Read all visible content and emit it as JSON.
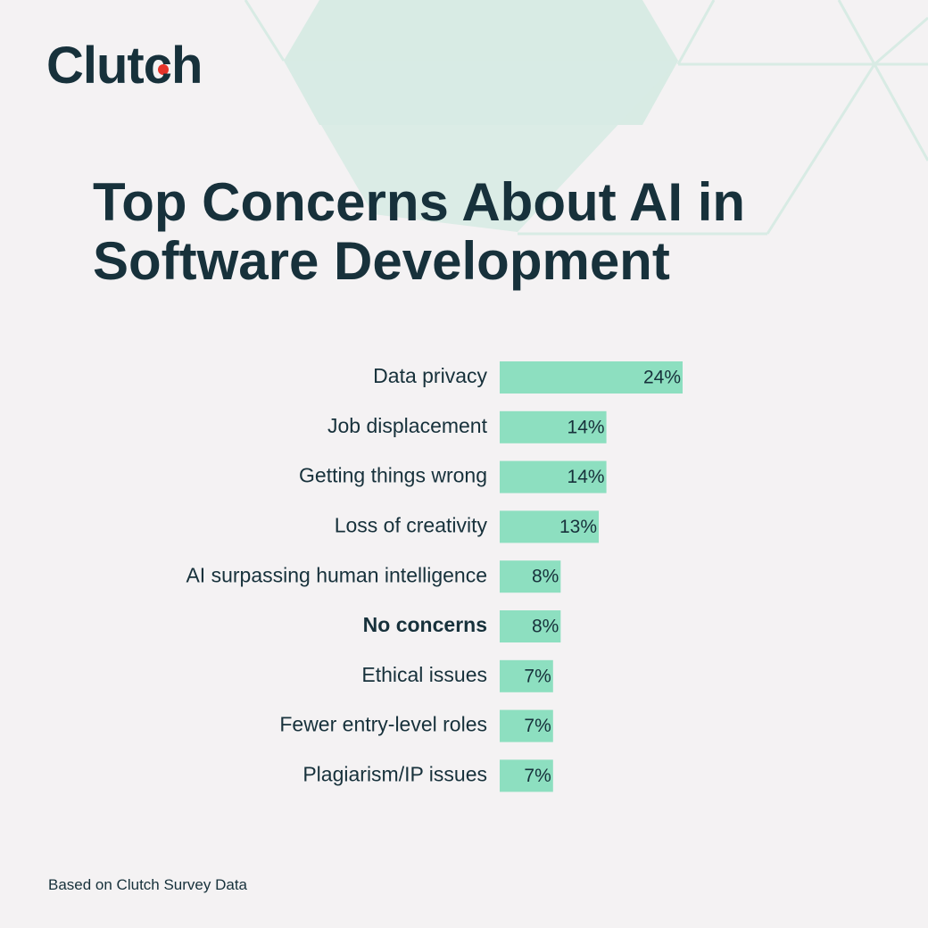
{
  "logo": "Clutch",
  "chart_data": {
    "type": "hbar",
    "title": "Top Concerns About AI in Software Development",
    "categories": [
      "Data privacy",
      "Job displacement",
      "Getting things wrong",
      "Loss of creativity",
      "AI surpassing human intelligence",
      "No concerns",
      "Ethical issues",
      "Fewer entry-level roles",
      "Plagiarism/IP issues"
    ],
    "values": [
      24,
      14,
      14,
      13,
      8,
      8,
      7,
      7,
      7
    ],
    "value_labels": [
      "24%",
      "14%",
      "14%",
      "13%",
      "8%",
      "8%",
      "7%",
      "7%",
      "7%"
    ],
    "color": "#8ddfc0",
    "source": "Based on Clutch Survey Data"
  }
}
